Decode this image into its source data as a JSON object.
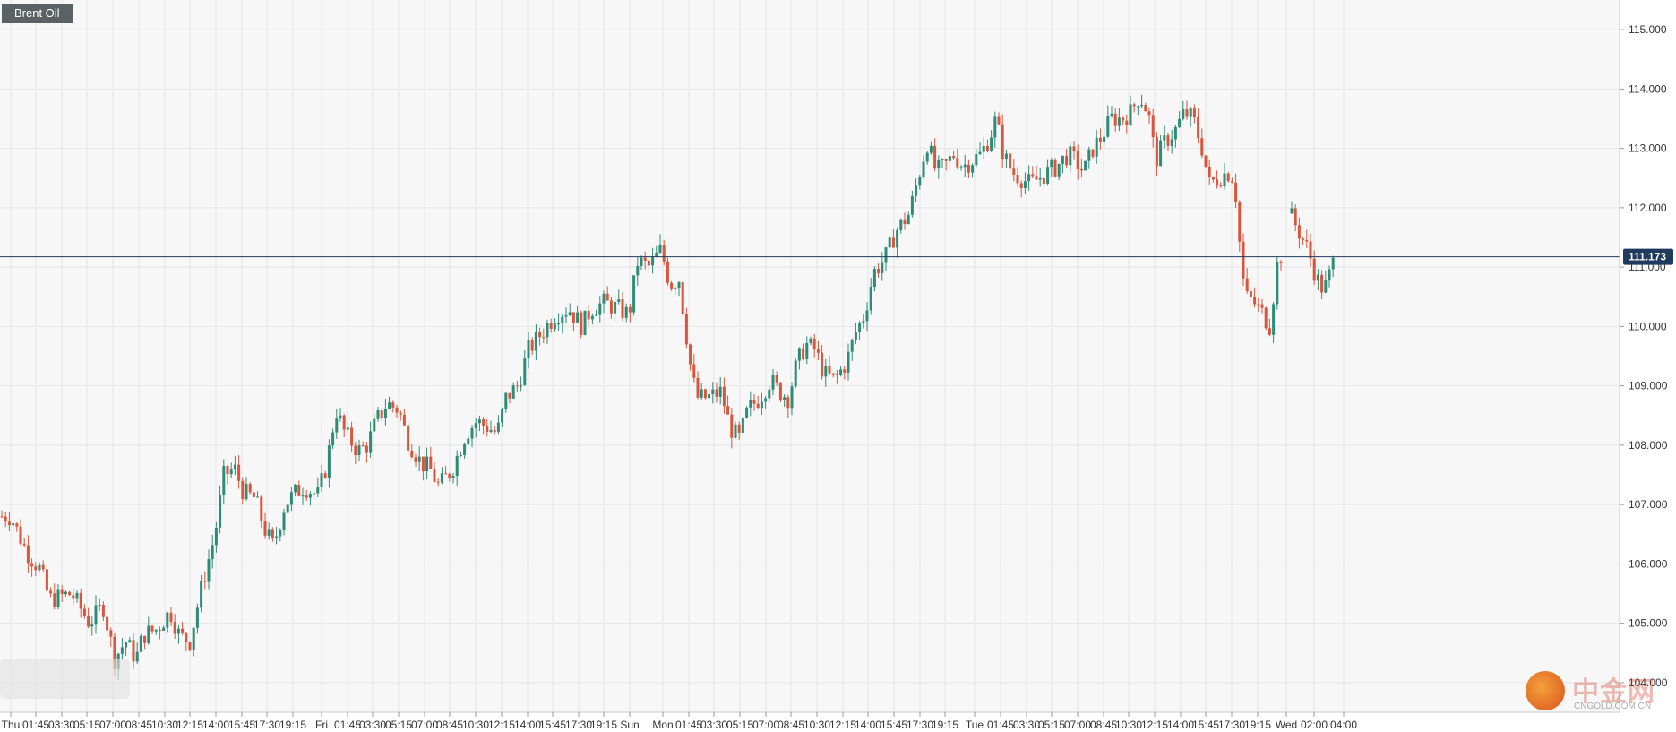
{
  "instrument": "Brent Oil",
  "colors": {
    "up": "#2e8b75",
    "down": "#d9553d",
    "price_line": "#1f3a5f",
    "grid": "#e6e6e6",
    "plot_bg": "#f7f7f7"
  },
  "watermark": {
    "brand": "中金网",
    "url": "CNGOLD.COM.CN"
  },
  "chart_data": {
    "type": "candlestick",
    "ylim": [
      103.5,
      115.5
    ],
    "y_ticks": [
      "104.000",
      "105.000",
      "106.000",
      "107.000",
      "108.000",
      "109.000",
      "110.000",
      "111.000",
      "112.000",
      "113.000",
      "114.000",
      "115.000"
    ],
    "current_price": "111.173",
    "x_ticks": [
      "Thu",
      "01:45",
      "03:30",
      "05:15",
      "07:00",
      "08:45",
      "10:30",
      "12:15",
      "14:00",
      "15:45",
      "17:30",
      "19:15",
      "Fri",
      "01:45",
      "03:30",
      "05:15",
      "07:00",
      "08:45",
      "10:30",
      "12:15",
      "14:00",
      "15:45",
      "17:30",
      "19:15",
      "Sun",
      "Mon",
      "01:45",
      "03:30",
      "05:15",
      "07:00",
      "08:45",
      "10:30",
      "12:15",
      "14:00",
      "15:45",
      "17:30",
      "19:15",
      "Tue",
      "01:45",
      "03:30",
      "05:15",
      "07:00",
      "08:45",
      "10:30",
      "12:15",
      "14:00",
      "15:45",
      "17:30",
      "19:15",
      "Wed",
      "02:00",
      "04:00"
    ],
    "x_tick_positions": [
      12,
      40,
      69,
      97,
      126,
      155,
      184,
      212,
      241,
      270,
      298,
      327,
      359,
      388,
      416,
      445,
      474,
      502,
      531,
      560,
      589,
      617,
      646,
      674,
      703,
      740,
      769,
      797,
      826,
      855,
      883,
      912,
      941,
      969,
      998,
      1027,
      1055,
      1088,
      1117,
      1146,
      1174,
      1203,
      1232,
      1260,
      1289,
      1318,
      1346,
      1375,
      1404,
      1436,
      1467,
      1500
    ],
    "path_points": [
      [
        0,
        106.8
      ],
      [
        12,
        106.8
      ],
      [
        30,
        106.2
      ],
      [
        45,
        105.9
      ],
      [
        55,
        105.4
      ],
      [
        80,
        105.5
      ],
      [
        100,
        105.0
      ],
      [
        115,
        105.3
      ],
      [
        128,
        104.4
      ],
      [
        140,
        104.7
      ],
      [
        152,
        104.4
      ],
      [
        160,
        104.8
      ],
      [
        175,
        104.9
      ],
      [
        190,
        105.2
      ],
      [
        200,
        104.8
      ],
      [
        212,
        104.7
      ],
      [
        225,
        105.6
      ],
      [
        240,
        106.5
      ],
      [
        250,
        107.5
      ],
      [
        262,
        107.6
      ],
      [
        272,
        107.2
      ],
      [
        285,
        107.1
      ],
      [
        295,
        106.6
      ],
      [
        305,
        106.3
      ],
      [
        318,
        107.0
      ],
      [
        330,
        107.2
      ],
      [
        340,
        107.3
      ],
      [
        355,
        107.15
      ],
      [
        365,
        107.7
      ],
      [
        375,
        108.6
      ],
      [
        385,
        108.2
      ],
      [
        400,
        107.9
      ],
      [
        410,
        108.0
      ],
      [
        420,
        108.4
      ],
      [
        432,
        108.7
      ],
      [
        445,
        108.6
      ],
      [
        455,
        108.1
      ],
      [
        470,
        107.7
      ],
      [
        480,
        107.6
      ],
      [
        490,
        107.3
      ],
      [
        505,
        107.6
      ],
      [
        520,
        108.2
      ],
      [
        532,
        108.4
      ],
      [
        545,
        108.3
      ],
      [
        555,
        108.2
      ],
      [
        565,
        108.8
      ],
      [
        578,
        109.0
      ],
      [
        590,
        109.6
      ],
      [
        605,
        109.9
      ],
      [
        620,
        110.2
      ],
      [
        635,
        110.3
      ],
      [
        650,
        110.0
      ],
      [
        660,
        110.3
      ],
      [
        675,
        110.4
      ],
      [
        690,
        110.3
      ],
      [
        702,
        110.2
      ],
      [
        712,
        111.1
      ],
      [
        725,
        111.0
      ],
      [
        738,
        111.3
      ],
      [
        748,
        110.7
      ],
      [
        758,
        110.8
      ],
      [
        765,
        110.0
      ],
      [
        772,
        109.2
      ],
      [
        778,
        108.8
      ],
      [
        790,
        108.8
      ],
      [
        805,
        108.9
      ],
      [
        815,
        108.3
      ],
      [
        825,
        108.1
      ],
      [
        835,
        108.6
      ],
      [
        848,
        108.8
      ],
      [
        860,
        109.1
      ],
      [
        870,
        108.9
      ],
      [
        880,
        108.8
      ],
      [
        890,
        109.4
      ],
      [
        900,
        109.7
      ],
      [
        910,
        109.6
      ],
      [
        920,
        109.2
      ],
      [
        932,
        109.1
      ],
      [
        945,
        109.4
      ],
      [
        955,
        109.9
      ],
      [
        965,
        110.2
      ],
      [
        975,
        110.9
      ],
      [
        990,
        111.2
      ],
      [
        1000,
        111.6
      ],
      [
        1015,
        111.9
      ],
      [
        1025,
        112.5
      ],
      [
        1035,
        113.1
      ],
      [
        1045,
        112.6
      ],
      [
        1055,
        112.7
      ],
      [
        1065,
        112.9
      ],
      [
        1075,
        112.7
      ],
      [
        1085,
        112.8
      ],
      [
        1095,
        112.9
      ],
      [
        1105,
        113.2
      ],
      [
        1112,
        113.5
      ],
      [
        1120,
        112.9
      ],
      [
        1130,
        112.6
      ],
      [
        1140,
        112.5
      ],
      [
        1150,
        112.4
      ],
      [
        1160,
        112.5
      ],
      [
        1170,
        112.6
      ],
      [
        1180,
        112.7
      ],
      [
        1192,
        112.9
      ],
      [
        1200,
        112.8
      ],
      [
        1210,
        112.6
      ],
      [
        1220,
        113.0
      ],
      [
        1230,
        113.2
      ],
      [
        1240,
        113.5
      ],
      [
        1252,
        113.5
      ],
      [
        1262,
        113.6
      ],
      [
        1272,
        113.9
      ],
      [
        1282,
        113.6
      ],
      [
        1290,
        112.8
      ],
      [
        1300,
        113.1
      ],
      [
        1312,
        113.3
      ],
      [
        1322,
        113.6
      ],
      [
        1332,
        113.5
      ],
      [
        1342,
        113.0
      ],
      [
        1350,
        112.4
      ],
      [
        1360,
        112.5
      ],
      [
        1370,
        112.6
      ],
      [
        1378,
        112.5
      ],
      [
        1385,
        111.2
      ],
      [
        1390,
        110.5
      ],
      [
        1400,
        110.4
      ],
      [
        1410,
        110.2
      ],
      [
        1418,
        110.0
      ],
      [
        1425,
        111.0
      ],
      [
        1432,
        111.3
      ]
    ],
    "path_points_2": [
      [
        1440,
        111.9
      ],
      [
        1450,
        111.6
      ],
      [
        1460,
        111.3
      ],
      [
        1470,
        110.8
      ],
      [
        1478,
        110.6
      ],
      [
        1485,
        110.9
      ],
      [
        1490,
        111.17
      ]
    ]
  }
}
